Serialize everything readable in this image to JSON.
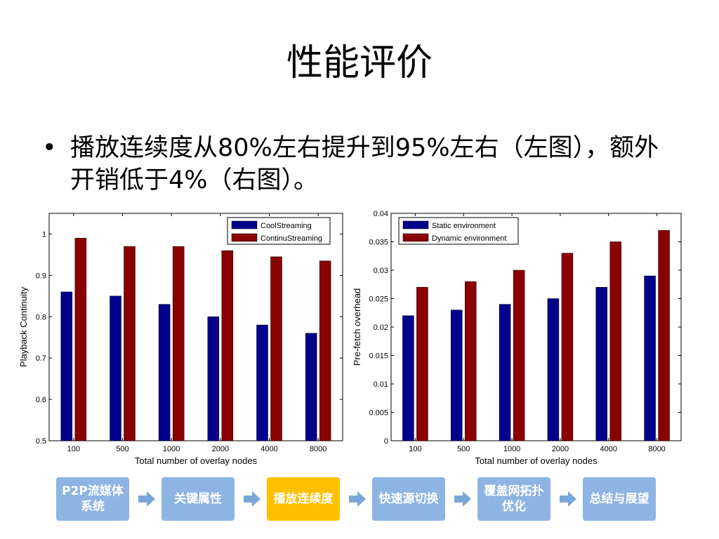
{
  "slide": {
    "title": "性能评价",
    "bullet": "播放连续度从80%左右提升到95%左右（左图），额外开销低于4%（右图）。"
  },
  "flow": [
    {
      "label": "P2P流媒体系统",
      "active": false
    },
    {
      "label": "关键属性",
      "active": false
    },
    {
      "label": "播放连续度",
      "active": true
    },
    {
      "label": "快速源切换",
      "active": false
    },
    {
      "label": "覆盖网拓扑优化",
      "active": false
    },
    {
      "label": "总结与展望",
      "active": false
    }
  ],
  "colors": {
    "blue": "#00008b",
    "red": "#8b0000",
    "flow_box": "#8eb4e3",
    "flow_active": "#ffc000",
    "arrow": "#7aa7d8"
  },
  "chart_data": [
    {
      "type": "bar",
      "categories": [
        "100",
        "500",
        "1000",
        "2000",
        "4000",
        "8000"
      ],
      "series": [
        {
          "name": "CoolStreaming",
          "values": [
            0.86,
            0.85,
            0.83,
            0.8,
            0.78,
            0.76
          ]
        },
        {
          "name": "ContinuStreaming",
          "values": [
            0.99,
            0.97,
            0.97,
            0.96,
            0.945,
            0.935
          ]
        }
      ],
      "ylim": [
        0.5,
        1.05
      ],
      "yticks": [
        "0.5",
        "0.6",
        "0.7",
        "0.8",
        "0.9",
        "1"
      ],
      "xlabel": "Total number of overlay nodes",
      "ylabel": "Playback Continuity",
      "legend": "top-right"
    },
    {
      "type": "bar",
      "categories": [
        "100",
        "500",
        "1000",
        "2000",
        "4000",
        "8000"
      ],
      "series": [
        {
          "name": "Static environment",
          "values": [
            0.022,
            0.023,
            0.024,
            0.025,
            0.027,
            0.029
          ]
        },
        {
          "name": "Dynamic environment",
          "values": [
            0.027,
            0.028,
            0.03,
            0.033,
            0.035,
            0.037
          ]
        }
      ],
      "ylim": [
        0,
        0.04
      ],
      "yticks": [
        "0",
        "0.005",
        "0.01",
        "0.015",
        "0.02",
        "0.025",
        "0.03",
        "0.035",
        "0.04"
      ],
      "xlabel": "Total number of overlay nodes",
      "ylabel": "Pre-fetch overhead",
      "legend": "top-left"
    }
  ]
}
